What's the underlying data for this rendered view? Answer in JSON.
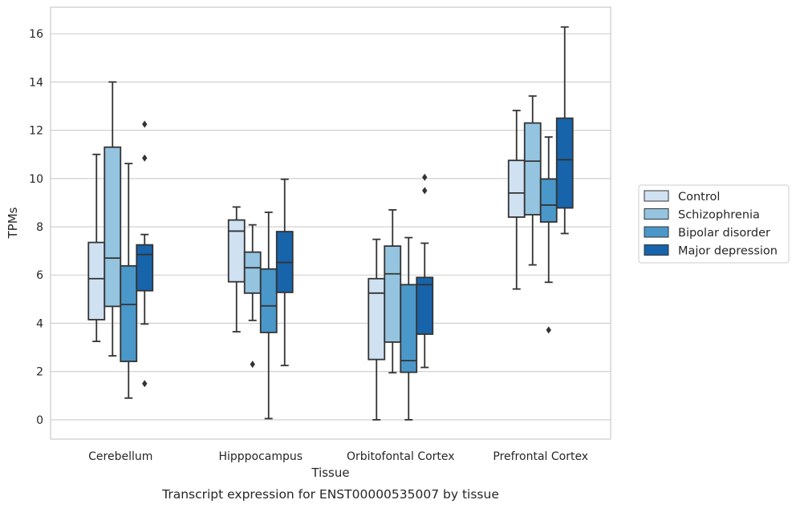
{
  "chart_data": {
    "type": "box",
    "caption": "Transcript expression for ENST00000535007 by tissue",
    "xlabel": "Tissue",
    "ylabel": "TPMs",
    "ylim": [
      -0.8,
      17.1
    ],
    "yticks": [
      0,
      2,
      4,
      6,
      8,
      10,
      12,
      14,
      16
    ],
    "grid": "horizontal",
    "legend_position": "outside-right",
    "categories": [
      "Cerebellum",
      "Hipppocampus",
      "Orbitofontal Cortex",
      "Prefrontal Cortex"
    ],
    "series": [
      {
        "name": "Control",
        "color": "#d0e1f2",
        "boxes": [
          {
            "whisker_low": 3.25,
            "q1": 4.15,
            "median": 5.85,
            "q3": 7.35,
            "whisker_high": 11.0,
            "outliers": []
          },
          {
            "whisker_low": 3.65,
            "q1": 5.72,
            "median": 7.82,
            "q3": 8.28,
            "whisker_high": 8.82,
            "outliers": []
          },
          {
            "whisker_low": 0.0,
            "q1": 2.5,
            "median": 5.25,
            "q3": 5.85,
            "whisker_high": 7.48,
            "outliers": []
          },
          {
            "whisker_low": 5.42,
            "q1": 8.4,
            "median": 9.4,
            "q3": 10.75,
            "whisker_high": 12.82,
            "outliers": []
          }
        ]
      },
      {
        "name": "Schizophrenia",
        "color": "#94c4df",
        "boxes": [
          {
            "whisker_low": 2.65,
            "q1": 4.7,
            "median": 6.7,
            "q3": 11.3,
            "whisker_high": 14.0,
            "outliers": []
          },
          {
            "whisker_low": 4.12,
            "q1": 5.25,
            "median": 6.3,
            "q3": 6.95,
            "whisker_high": 8.08,
            "outliers": [
              2.3
            ]
          },
          {
            "whisker_low": 1.95,
            "q1": 3.22,
            "median": 6.05,
            "q3": 7.2,
            "whisker_high": 8.7,
            "outliers": []
          },
          {
            "whisker_low": 6.42,
            "q1": 8.5,
            "median": 10.72,
            "q3": 12.3,
            "whisker_high": 13.42,
            "outliers": []
          }
        ]
      },
      {
        "name": "Bipolar disorder",
        "color": "#4a98c9",
        "boxes": [
          {
            "whisker_low": 0.9,
            "q1": 2.42,
            "median": 4.78,
            "q3": 6.38,
            "whisker_high": 10.62,
            "outliers": []
          },
          {
            "whisker_low": 0.05,
            "q1": 3.62,
            "median": 4.72,
            "q3": 6.25,
            "whisker_high": 8.6,
            "outliers": []
          },
          {
            "whisker_low": 0.0,
            "q1": 1.97,
            "median": 2.45,
            "q3": 5.6,
            "whisker_high": 7.55,
            "outliers": []
          },
          {
            "whisker_low": 5.7,
            "q1": 8.2,
            "median": 8.9,
            "q3": 9.98,
            "whisker_high": 11.72,
            "outliers": [
              3.72
            ]
          }
        ]
      },
      {
        "name": "Major depression",
        "color": "#1764ab",
        "boxes": [
          {
            "whisker_low": 3.97,
            "q1": 5.35,
            "median": 6.85,
            "q3": 7.25,
            "whisker_high": 7.68,
            "outliers": [
              1.5,
              10.85,
              12.25
            ]
          },
          {
            "whisker_low": 2.25,
            "q1": 5.28,
            "median": 6.52,
            "q3": 7.8,
            "whisker_high": 9.97,
            "outliers": []
          },
          {
            "whisker_low": 2.17,
            "q1": 3.55,
            "median": 5.6,
            "q3": 5.9,
            "whisker_high": 7.32,
            "outliers": [
              9.5,
              10.05
            ]
          },
          {
            "whisker_low": 7.72,
            "q1": 8.78,
            "median": 10.78,
            "q3": 12.5,
            "whisker_high": 16.28,
            "outliers": []
          }
        ]
      }
    ]
  }
}
